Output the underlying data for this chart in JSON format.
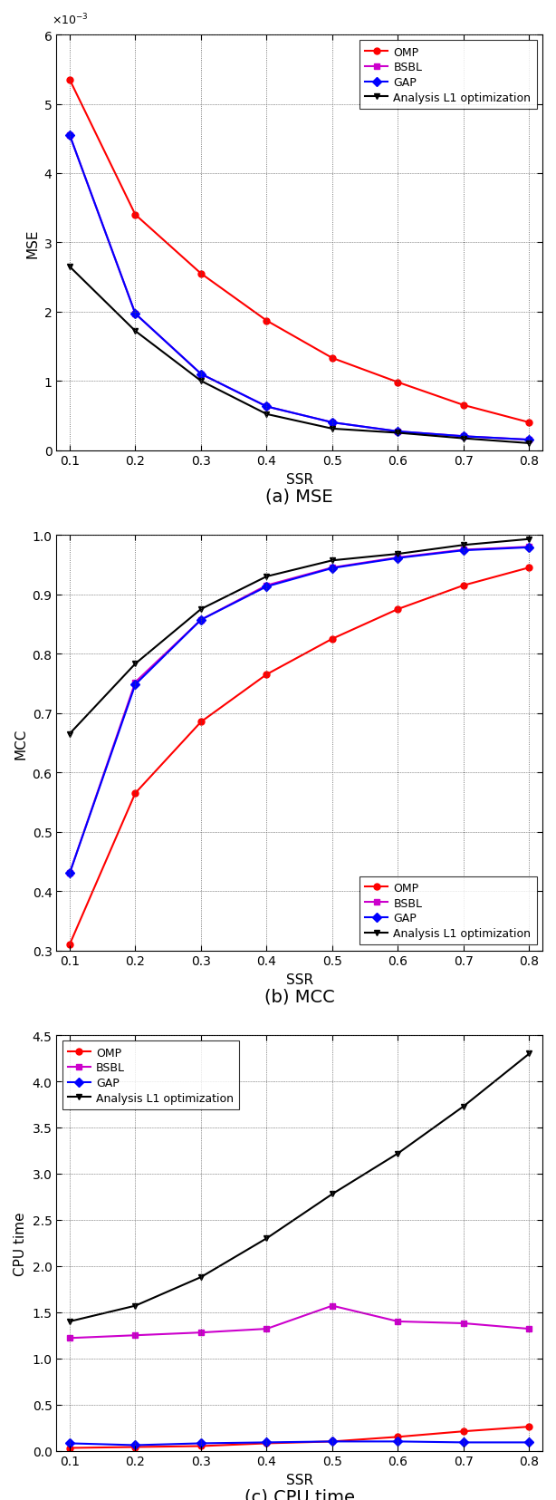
{
  "ssr": [
    0.1,
    0.2,
    0.3,
    0.4,
    0.5,
    0.6,
    0.7,
    0.8
  ],
  "mse": {
    "OMP": [
      0.00535,
      0.0034,
      0.00255,
      0.00187,
      0.00133,
      0.00098,
      0.00065,
      0.0004
    ],
    "BSBL": [
      0.00455,
      0.00197,
      0.0011,
      0.00063,
      0.0004,
      0.00027,
      0.0002,
      0.00015
    ],
    "GAP": [
      0.00455,
      0.00197,
      0.0011,
      0.00063,
      0.0004,
      0.00027,
      0.0002,
      0.00015
    ],
    "Analysis L1 optimization": [
      0.00265,
      0.00172,
      0.001,
      0.00052,
      0.00031,
      0.00025,
      0.00017,
      0.0001
    ]
  },
  "mcc": {
    "OMP": [
      0.31,
      0.565,
      0.685,
      0.765,
      0.825,
      0.875,
      0.915,
      0.945
    ],
    "BSBL": [
      0.43,
      0.752,
      0.857,
      0.915,
      0.945,
      0.962,
      0.975,
      0.98
    ],
    "GAP": [
      0.43,
      0.748,
      0.857,
      0.913,
      0.944,
      0.961,
      0.974,
      0.979
    ],
    "Analysis L1 optimization": [
      0.665,
      0.783,
      0.875,
      0.93,
      0.957,
      0.968,
      0.983,
      0.993
    ]
  },
  "cpu": {
    "OMP": [
      0.03,
      0.04,
      0.05,
      0.08,
      0.1,
      0.15,
      0.21,
      0.26
    ],
    "BSBL": [
      1.22,
      1.25,
      1.28,
      1.32,
      1.57,
      1.4,
      1.38,
      1.32
    ],
    "GAP": [
      0.08,
      0.06,
      0.08,
      0.09,
      0.1,
      0.1,
      0.09,
      0.09
    ],
    "Analysis L1 optimization": [
      1.4,
      1.57,
      1.88,
      2.3,
      2.78,
      3.22,
      3.73,
      4.3
    ]
  },
  "colors": {
    "OMP": "#ff0000",
    "BSBL": "#cc00cc",
    "GAP": "#0000ff",
    "Analysis L1 optimization": "#000000"
  },
  "markers": {
    "OMP": "o",
    "BSBL": "s",
    "GAP": "D",
    "Analysis L1 optimization": "v"
  },
  "captions": [
    "(a) MSE",
    "(b) MCC",
    "(c) CPU time"
  ],
  "ylabels": [
    "MSE",
    "MCC",
    "CPU time"
  ],
  "xlim": [
    0.08,
    0.82
  ],
  "mse_ylim": [
    0,
    0.006
  ],
  "mcc_ylim": [
    0.3,
    1.0
  ],
  "cpu_ylim": [
    0,
    4.5
  ],
  "xticks": [
    0.1,
    0.2,
    0.3,
    0.4,
    0.5,
    0.6,
    0.7,
    0.8
  ],
  "mse_yticks": [
    0,
    0.001,
    0.002,
    0.003,
    0.004,
    0.005,
    0.006
  ],
  "mcc_yticks": [
    0.3,
    0.4,
    0.5,
    0.6,
    0.7,
    0.8,
    0.9,
    1.0
  ],
  "cpu_yticks": [
    0,
    0.5,
    1.0,
    1.5,
    2.0,
    2.5,
    3.0,
    3.5,
    4.0,
    4.5
  ],
  "mse_legend_loc": "upper right",
  "mcc_legend_loc": "lower right",
  "cpu_legend_loc": "upper left"
}
